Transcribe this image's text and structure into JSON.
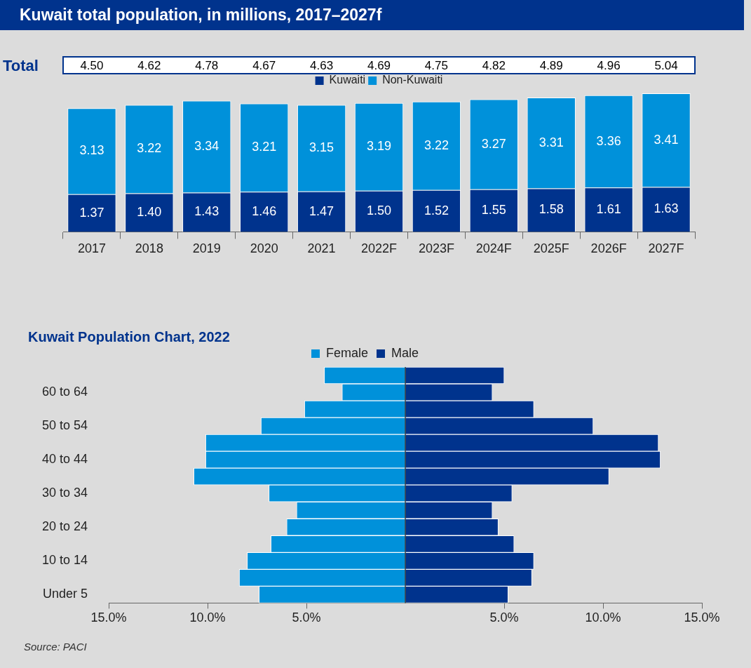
{
  "chart_data": [
    {
      "type": "bar",
      "title": "Kuwait total population, in millions, 2017–2027f",
      "categories": [
        "2017",
        "2018",
        "2019",
        "2020",
        "2021",
        "2022F",
        "2023F",
        "2024F",
        "2025F",
        "2026F",
        "2027F"
      ],
      "stacked": true,
      "legend": "top",
      "tick_labels": "x",
      "series": [
        {
          "name": "Kuwaiti",
          "color": "#00338d",
          "values": [
            1.37,
            1.4,
            1.43,
            1.46,
            1.47,
            1.5,
            1.52,
            1.55,
            1.58,
            1.61,
            1.63
          ],
          "value_labels": [
            "1.37",
            "1.40",
            "1.43",
            "1.46",
            "1.47",
            "1.50",
            "1.52",
            "1.55",
            "1.58",
            "1.61",
            "1.63"
          ]
        },
        {
          "name": "Non-Kuwaiti",
          "color": "#0091da",
          "values": [
            3.13,
            3.22,
            3.34,
            3.21,
            3.15,
            3.19,
            3.22,
            3.27,
            3.31,
            3.36,
            3.41
          ],
          "value_labels": [
            "3.13",
            "3.22",
            "3.34",
            "3.21",
            "3.15",
            "3.19",
            "3.22",
            "3.27",
            "3.31",
            "3.36",
            "3.41"
          ]
        }
      ],
      "totals": [
        "4.50",
        "4.62",
        "4.78",
        "4.67",
        "4.63",
        "4.69",
        "4.75",
        "4.82",
        "4.89",
        "4.96",
        "5.04"
      ],
      "annotations": [
        "Total"
      ]
    },
    {
      "type": "bar",
      "title": "Kuwait Population Chart, 2022",
      "orientation": "horizontal",
      "stacked": true,
      "legend": "top",
      "categories": [
        null,
        "60 to 64",
        null,
        "50 to 54",
        null,
        "40 to 44",
        null,
        "30 to 34",
        null,
        "20 to 24",
        null,
        "10 to 14",
        null,
        "Under 5"
      ],
      "series": [
        {
          "name": "Female",
          "color": "#0091da",
          "values": [
            -4.1,
            -3.2,
            -5.1,
            -7.3,
            -10.1,
            -10.1,
            -10.7,
            -6.9,
            -5.5,
            -6.0,
            -6.8,
            -8.0,
            -8.4,
            -7.4
          ]
        },
        {
          "name": "Male",
          "color": "#00338d",
          "values": [
            5.0,
            4.4,
            6.5,
            9.5,
            12.8,
            12.9,
            10.3,
            5.4,
            4.4,
            4.7,
            5.5,
            6.5,
            6.4,
            5.2
          ]
        }
      ],
      "xlim": [
        -15,
        15
      ],
      "xticks": [
        {
          "value": -15,
          "label": "15.0%"
        },
        {
          "value": -10,
          "label": "10.0%"
        },
        {
          "value": -5,
          "label": "5.0%"
        },
        {
          "value": 5,
          "label": "5.0%"
        },
        {
          "value": 10,
          "label": "10.0%"
        },
        {
          "value": 15,
          "label": "15.0%"
        }
      ],
      "annotations": [
        "Source: PACI"
      ]
    }
  ]
}
